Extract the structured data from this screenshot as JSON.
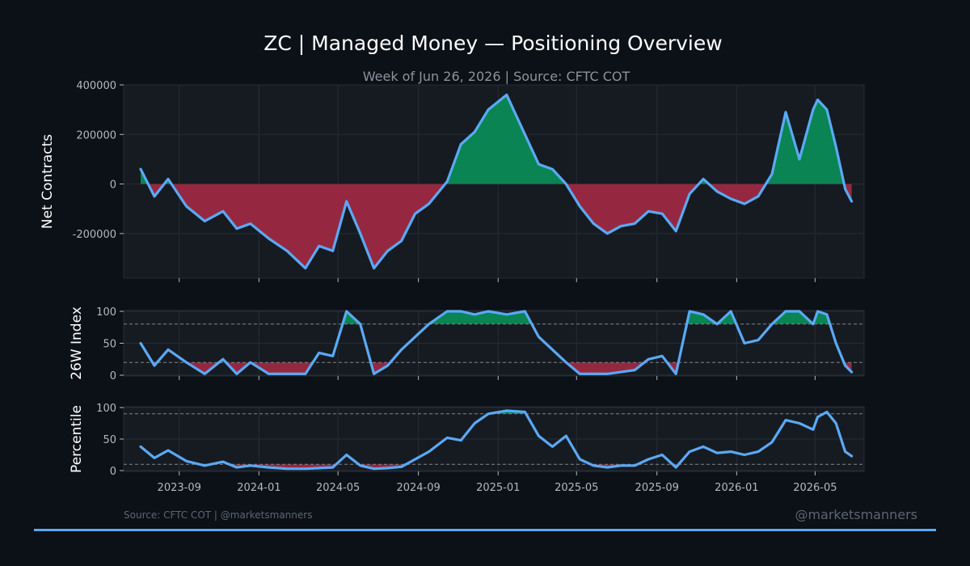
{
  "title": "ZC | Managed Money — Positioning Overview",
  "subtitle": "Week of Jun 26, 2026 | Source: CFTC COT",
  "footer_source": "Source: CFTC COT | @marketsmanners",
  "watermark": "@marketsmanners",
  "colors": {
    "background": "#0c1017",
    "panel": "#161b22",
    "line": "#5aa9f5",
    "positive_fill": "#0a8452",
    "negative_fill": "#952840",
    "divider": "#5aa9f5"
  },
  "chart_data": [
    {
      "type": "area",
      "name": "net-contracts",
      "ylabel": "Net Contracts",
      "ylim": [
        -380000,
        400000
      ],
      "yticks": [
        -200000,
        0,
        200000,
        400000
      ],
      "x_range": [
        "2023-06-08",
        "2026-07-15"
      ],
      "x_ticks": [
        "2023-09",
        "2024-01",
        "2024-05",
        "2024-09",
        "2025-01",
        "2025-05",
        "2025-09",
        "2026-01",
        "2026-05"
      ],
      "fill_threshold": 0,
      "x": [
        "2023-07-04",
        "2023-07-25",
        "2023-08-15",
        "2023-09-12",
        "2023-10-10",
        "2023-11-07",
        "2023-11-28",
        "2023-12-19",
        "2024-01-16",
        "2024-02-13",
        "2024-03-12",
        "2024-04-02",
        "2024-04-23",
        "2024-05-14",
        "2024-06-04",
        "2024-06-25",
        "2024-07-16",
        "2024-08-06",
        "2024-08-27",
        "2024-09-17",
        "2024-10-15",
        "2024-11-05",
        "2024-11-26",
        "2024-12-17",
        "2025-01-14",
        "2025-02-11",
        "2025-03-04",
        "2025-03-25",
        "2025-04-15",
        "2025-05-06",
        "2025-05-27",
        "2025-06-17",
        "2025-07-08",
        "2025-07-29",
        "2025-08-19",
        "2025-09-09",
        "2025-09-30",
        "2025-10-21",
        "2025-11-11",
        "2025-12-02",
        "2025-12-23",
        "2026-01-13",
        "2026-02-03",
        "2026-02-24",
        "2026-03-17",
        "2026-04-07",
        "2026-04-28",
        "2026-05-05",
        "2026-05-19",
        "2026-06-02",
        "2026-06-16",
        "2026-06-26"
      ],
      "y": [
        60000,
        -50000,
        20000,
        -90000,
        -150000,
        -110000,
        -180000,
        -160000,
        -220000,
        -270000,
        -340000,
        -250000,
        -270000,
        -70000,
        -200000,
        -340000,
        -270000,
        -230000,
        -120000,
        -80000,
        10000,
        160000,
        210000,
        300000,
        360000,
        200000,
        80000,
        60000,
        0,
        -90000,
        -160000,
        -200000,
        -170000,
        -160000,
        -110000,
        -120000,
        -190000,
        -40000,
        20000,
        -30000,
        -60000,
        -80000,
        -50000,
        40000,
        290000,
        100000,
        300000,
        340000,
        300000,
        150000,
        -20000,
        -70000
      ]
    },
    {
      "type": "area",
      "name": "26w-index",
      "ylabel": "26W Index",
      "ylim": [
        0,
        100
      ],
      "yticks": [
        0,
        50,
        100
      ],
      "x_range": [
        "2023-06-08",
        "2026-07-15"
      ],
      "reference_lines": [
        20,
        80
      ],
      "x": [
        "2023-07-04",
        "2023-07-25",
        "2023-08-15",
        "2023-09-12",
        "2023-10-10",
        "2023-11-07",
        "2023-11-28",
        "2023-12-19",
        "2024-01-16",
        "2024-02-13",
        "2024-03-12",
        "2024-04-02",
        "2024-04-23",
        "2024-05-14",
        "2024-06-04",
        "2024-06-25",
        "2024-07-16",
        "2024-08-06",
        "2024-08-27",
        "2024-09-17",
        "2024-10-15",
        "2024-11-05",
        "2024-11-26",
        "2024-12-17",
        "2025-01-14",
        "2025-02-11",
        "2025-03-04",
        "2025-03-25",
        "2025-04-15",
        "2025-05-06",
        "2025-05-27",
        "2025-06-17",
        "2025-07-08",
        "2025-07-29",
        "2025-08-19",
        "2025-09-09",
        "2025-09-30",
        "2025-10-21",
        "2025-11-11",
        "2025-12-02",
        "2025-12-23",
        "2026-01-13",
        "2026-02-03",
        "2026-02-24",
        "2026-03-17",
        "2026-04-07",
        "2026-04-28",
        "2026-05-05",
        "2026-05-19",
        "2026-06-02",
        "2026-06-16",
        "2026-06-26"
      ],
      "y": [
        50,
        15,
        40,
        20,
        2,
        25,
        2,
        20,
        2,
        2,
        2,
        35,
        30,
        100,
        80,
        2,
        15,
        40,
        60,
        80,
        100,
        100,
        95,
        100,
        95,
        100,
        60,
        40,
        20,
        2,
        2,
        2,
        5,
        8,
        25,
        30,
        2,
        100,
        95,
        80,
        100,
        50,
        55,
        80,
        100,
        100,
        80,
        100,
        95,
        50,
        15,
        5
      ]
    },
    {
      "type": "area",
      "name": "percentile",
      "ylabel": "Percentile",
      "ylim": [
        0,
        100
      ],
      "yticks": [
        0,
        50,
        100
      ],
      "x_range": [
        "2023-06-08",
        "2026-07-15"
      ],
      "reference_lines": [
        10,
        90
      ],
      "x": [
        "2023-07-04",
        "2023-07-25",
        "2023-08-15",
        "2023-09-12",
        "2023-10-10",
        "2023-11-07",
        "2023-11-28",
        "2023-12-19",
        "2024-01-16",
        "2024-02-13",
        "2024-03-12",
        "2024-04-02",
        "2024-04-23",
        "2024-05-14",
        "2024-06-04",
        "2024-06-25",
        "2024-07-16",
        "2024-08-06",
        "2024-08-27",
        "2024-09-17",
        "2024-10-15",
        "2024-11-05",
        "2024-11-26",
        "2024-12-17",
        "2025-01-14",
        "2025-02-11",
        "2025-03-04",
        "2025-03-25",
        "2025-04-15",
        "2025-05-06",
        "2025-05-27",
        "2025-06-17",
        "2025-07-08",
        "2025-07-29",
        "2025-08-19",
        "2025-09-09",
        "2025-09-30",
        "2025-10-21",
        "2025-11-11",
        "2025-12-02",
        "2025-12-23",
        "2026-01-13",
        "2026-02-03",
        "2026-02-24",
        "2026-03-17",
        "2026-04-07",
        "2026-04-28",
        "2026-05-05",
        "2026-05-19",
        "2026-06-02",
        "2026-06-16",
        "2026-06-26"
      ],
      "y": [
        38,
        20,
        32,
        15,
        8,
        14,
        5,
        8,
        5,
        3,
        3,
        4,
        5,
        25,
        8,
        3,
        4,
        6,
        18,
        30,
        52,
        48,
        75,
        90,
        95,
        93,
        55,
        38,
        55,
        18,
        8,
        5,
        8,
        8,
        18,
        25,
        5,
        30,
        38,
        28,
        30,
        25,
        30,
        45,
        80,
        75,
        65,
        85,
        93,
        75,
        30,
        23
      ]
    }
  ]
}
